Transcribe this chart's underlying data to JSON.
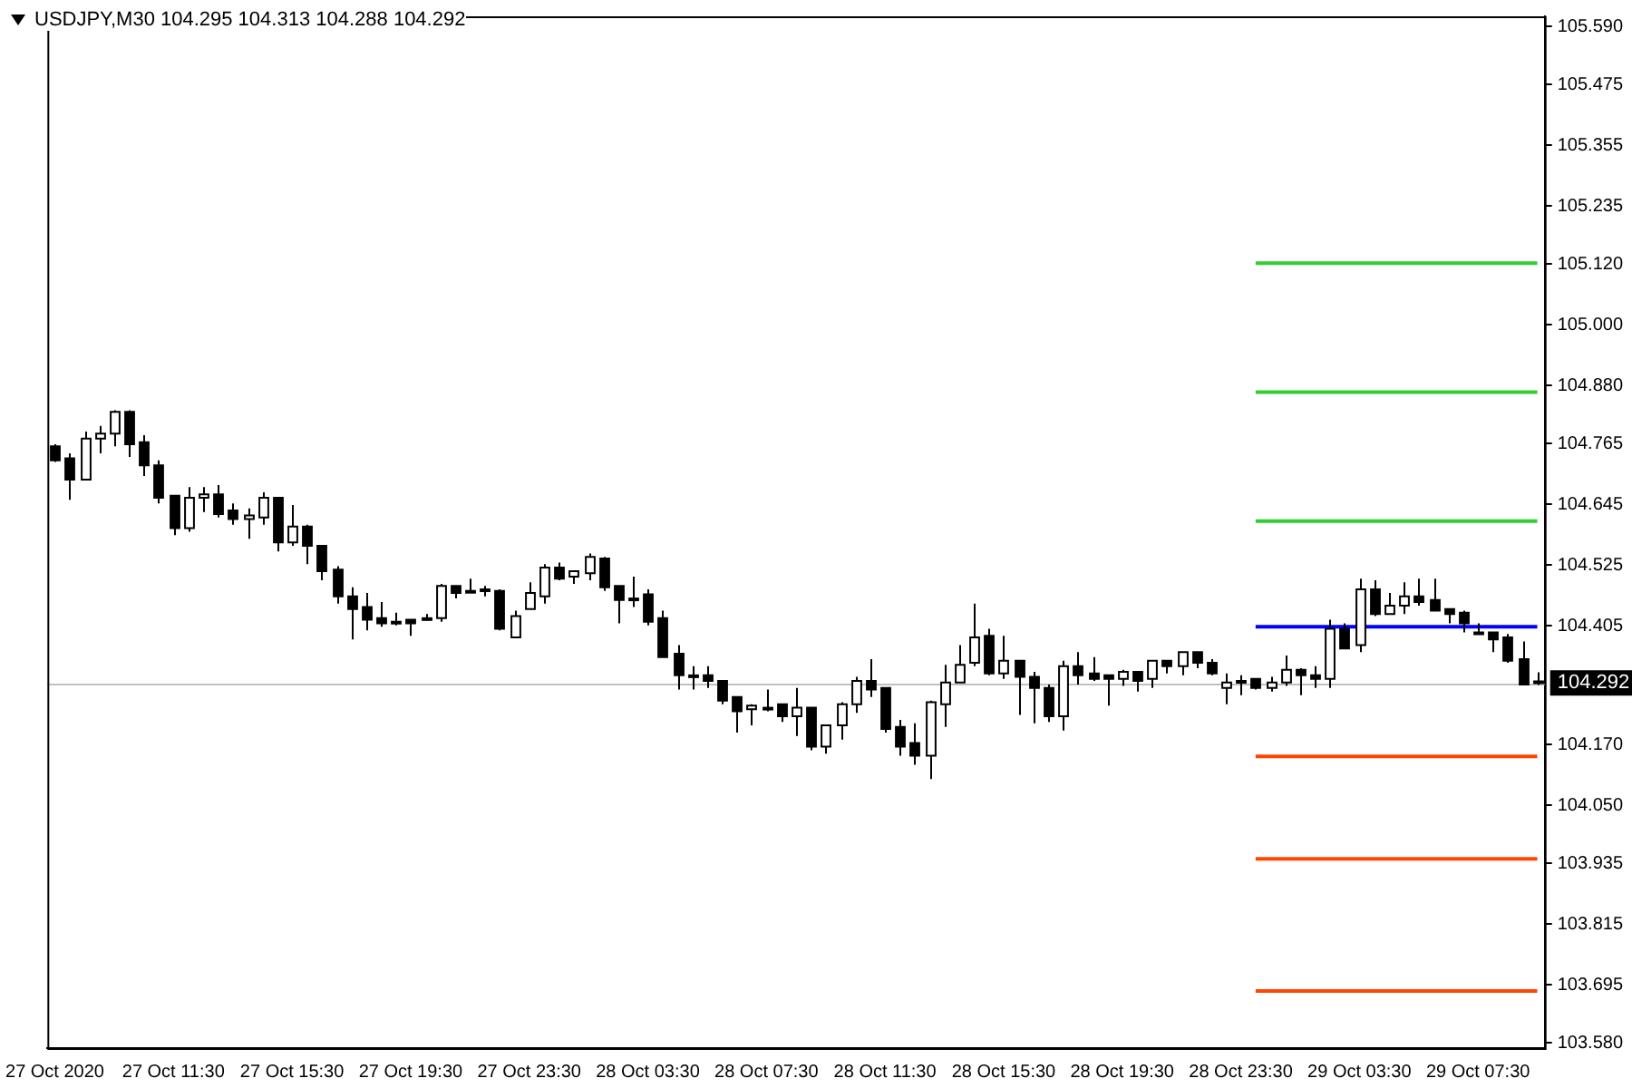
{
  "chart_data": {
    "type": "candlestick",
    "title": "USDJPY,M30  104.295 104.313 104.288 104.292",
    "categories": [
      "27 Oct 2020",
      null,
      null,
      null,
      null,
      null,
      null,
      null,
      "27 Oct 11:30",
      null,
      null,
      null,
      null,
      null,
      null,
      null,
      "27 Oct 15:30",
      null,
      null,
      null,
      null,
      null,
      null,
      null,
      "27 Oct 19:30",
      null,
      null,
      null,
      null,
      null,
      null,
      null,
      "27 Oct 23:30",
      null,
      null,
      null,
      null,
      null,
      null,
      null,
      "28 Oct 03:30",
      null,
      null,
      null,
      null,
      null,
      null,
      null,
      "28 Oct 07:30",
      null,
      null,
      null,
      null,
      null,
      null,
      null,
      "28 Oct 11:30",
      null,
      null,
      null,
      null,
      null,
      null,
      null,
      "28 Oct 15:30",
      null,
      null,
      null,
      null,
      null,
      null,
      null,
      "28 Oct 19:30",
      null,
      null,
      null,
      null,
      null,
      null,
      null,
      "28 Oct 23:30",
      null,
      null,
      null,
      null,
      null,
      null,
      null,
      "29 Oct 03:30",
      null,
      null,
      null,
      null,
      null,
      null,
      null,
      "29 Oct 07:30",
      null,
      null,
      null,
      null
    ],
    "ohlc": [
      [
        104.76,
        104.764,
        104.729,
        104.732
      ],
      [
        104.736,
        104.746,
        104.654,
        104.694
      ],
      [
        104.694,
        104.789,
        104.694,
        104.775
      ],
      [
        104.775,
        104.8,
        104.746,
        104.785
      ],
      [
        104.785,
        104.831,
        104.76,
        104.828
      ],
      [
        104.828,
        104.831,
        104.739,
        104.764
      ],
      [
        104.768,
        104.782,
        104.701,
        104.722
      ],
      [
        104.722,
        104.732,
        104.647,
        104.658
      ],
      [
        104.662,
        104.662,
        104.584,
        104.598
      ],
      [
        104.598,
        104.679,
        104.591,
        104.658
      ],
      [
        104.658,
        104.679,
        104.63,
        104.665
      ],
      [
        104.665,
        104.683,
        104.619,
        104.626
      ],
      [
        104.633,
        104.647,
        104.605,
        104.616
      ],
      [
        104.616,
        104.637,
        104.577,
        104.623
      ],
      [
        104.619,
        104.669,
        104.605,
        104.658
      ],
      [
        104.658,
        104.658,
        104.552,
        104.57
      ],
      [
        104.57,
        104.644,
        104.563,
        104.601
      ],
      [
        104.601,
        104.605,
        104.527,
        104.563
      ],
      [
        104.563,
        104.563,
        104.495,
        104.513
      ],
      [
        104.516,
        104.523,
        104.449,
        104.463
      ],
      [
        104.463,
        104.481,
        104.378,
        104.438
      ],
      [
        104.442,
        104.47,
        104.396,
        104.417
      ],
      [
        104.42,
        104.452,
        104.403,
        104.41
      ],
      [
        104.413,
        104.431,
        104.406,
        104.413
      ],
      [
        104.417,
        104.417,
        104.385,
        104.41
      ],
      [
        104.42,
        104.428,
        104.417,
        104.417
      ],
      [
        104.42,
        104.488,
        104.413,
        104.484
      ],
      [
        104.484,
        104.484,
        104.459,
        104.47
      ],
      [
        104.474,
        104.498,
        104.47,
        104.474
      ],
      [
        104.477,
        104.484,
        104.463,
        104.474
      ],
      [
        104.474,
        104.477,
        104.396,
        104.399
      ],
      [
        104.382,
        104.435,
        104.382,
        104.424
      ],
      [
        104.438,
        104.491,
        104.438,
        104.47
      ],
      [
        104.463,
        104.527,
        104.449,
        104.52
      ],
      [
        104.52,
        104.53,
        104.495,
        104.498
      ],
      [
        104.502,
        104.513,
        104.488,
        104.513
      ],
      [
        104.509,
        104.548,
        104.495,
        104.541
      ],
      [
        104.538,
        104.541,
        104.474,
        104.481
      ],
      [
        104.484,
        104.484,
        104.41,
        104.456
      ],
      [
        104.459,
        104.502,
        104.442,
        104.459
      ],
      [
        104.467,
        104.477,
        104.406,
        104.413
      ],
      [
        104.42,
        104.435,
        104.343,
        104.343
      ],
      [
        104.35,
        104.367,
        104.279,
        104.307
      ],
      [
        104.307,
        104.325,
        104.279,
        104.307
      ],
      [
        104.307,
        104.325,
        104.282,
        104.296
      ],
      [
        104.296,
        104.296,
        104.25,
        104.257
      ],
      [
        104.264,
        104.264,
        104.194,
        104.236
      ],
      [
        104.24,
        104.25,
        104.208,
        104.247
      ],
      [
        104.243,
        104.279,
        104.236,
        104.243
      ],
      [
        104.25,
        104.25,
        104.215,
        104.226
      ],
      [
        104.226,
        104.282,
        104.187,
        104.243
      ],
      [
        104.243,
        104.243,
        104.159,
        104.166
      ],
      [
        104.166,
        104.208,
        104.152,
        104.208
      ],
      [
        104.208,
        104.254,
        104.18,
        104.25
      ],
      [
        104.25,
        104.304,
        104.233,
        104.296
      ],
      [
        104.296,
        104.339,
        104.264,
        104.279
      ],
      [
        104.282,
        104.282,
        104.194,
        104.201
      ],
      [
        104.205,
        104.219,
        104.148,
        104.166
      ],
      [
        104.173,
        104.212,
        104.13,
        104.148
      ],
      [
        104.148,
        104.257,
        104.102,
        104.254
      ],
      [
        104.25,
        104.328,
        104.205,
        104.293
      ],
      [
        104.293,
        104.367,
        104.293,
        104.328
      ],
      [
        104.332,
        104.449,
        104.325,
        104.382
      ],
      [
        104.385,
        104.399,
        104.307,
        104.311
      ],
      [
        104.311,
        104.385,
        104.3,
        104.336
      ],
      [
        104.336,
        104.336,
        104.229,
        104.304
      ],
      [
        104.304,
        104.314,
        104.212,
        104.282
      ],
      [
        104.282,
        104.289,
        104.215,
        104.226
      ],
      [
        104.226,
        104.336,
        104.198,
        104.325
      ],
      [
        104.325,
        104.353,
        104.289,
        104.307
      ],
      [
        104.311,
        104.343,
        104.296,
        104.3
      ],
      [
        104.307,
        104.307,
        104.247,
        104.3
      ],
      [
        104.3,
        104.318,
        104.286,
        104.314
      ],
      [
        104.314,
        104.314,
        104.275,
        104.296
      ],
      [
        104.3,
        104.336,
        104.282,
        104.336
      ],
      [
        104.336,
        104.336,
        104.311,
        104.325
      ],
      [
        104.325,
        104.353,
        104.307,
        104.353
      ],
      [
        104.353,
        104.353,
        104.321,
        104.332
      ],
      [
        104.332,
        104.339,
        104.307,
        104.311
      ],
      [
        104.282,
        104.311,
        104.25,
        104.293
      ],
      [
        104.296,
        104.307,
        104.268,
        104.293
      ],
      [
        104.3,
        104.3,
        104.279,
        104.282
      ],
      [
        104.282,
        104.304,
        104.275,
        104.293
      ],
      [
        104.293,
        104.346,
        104.286,
        104.318
      ],
      [
        104.318,
        104.321,
        104.268,
        104.307
      ],
      [
        104.307,
        104.325,
        104.282,
        104.3
      ],
      [
        104.3,
        104.417,
        104.282,
        104.399
      ],
      [
        104.399,
        104.41,
        104.36,
        104.36
      ],
      [
        104.367,
        104.498,
        104.353,
        104.477
      ],
      [
        104.477,
        104.495,
        104.424,
        104.428
      ],
      [
        104.428,
        104.47,
        104.428,
        104.445
      ],
      [
        104.445,
        104.491,
        104.428,
        104.463
      ],
      [
        104.463,
        104.498,
        104.445,
        104.452
      ],
      [
        104.456,
        104.498,
        104.435,
        104.435
      ],
      [
        104.438,
        104.438,
        104.41,
        104.428
      ],
      [
        104.431,
        104.435,
        104.392,
        104.41
      ],
      [
        104.392,
        104.41,
        104.389,
        104.392
      ],
      [
        104.392,
        104.392,
        104.353,
        104.378
      ],
      [
        104.382,
        104.389,
        104.332,
        104.336
      ],
      [
        104.339,
        104.374,
        104.289,
        104.289
      ],
      [
        104.295,
        104.313,
        104.288,
        104.292
      ]
    ],
    "series": [
      {
        "type": "line",
        "color": "#32cd32",
        "values": [
          null,
          null,
          null,
          null,
          null,
          null,
          null,
          null,
          null,
          null,
          null,
          null,
          null,
          null,
          null,
          null,
          null,
          null,
          null,
          null,
          null,
          null,
          null,
          null,
          null,
          null,
          null,
          null,
          null,
          null,
          null,
          null,
          null,
          null,
          null,
          null,
          null,
          null,
          null,
          null,
          null,
          null,
          null,
          null,
          null,
          null,
          null,
          null,
          null,
          null,
          null,
          null,
          null,
          null,
          null,
          null,
          null,
          null,
          null,
          null,
          null,
          null,
          null,
          null,
          null,
          null,
          null,
          null,
          null,
          null,
          null,
          null,
          null,
          null,
          null,
          null,
          null,
          null,
          null,
          null,
          null,
          105.122,
          105.122,
          105.122,
          105.122,
          105.122,
          105.122,
          105.122,
          105.122,
          105.122,
          105.122,
          105.122,
          105.122,
          105.122,
          105.122,
          105.122,
          105.122,
          105.122,
          105.122,
          105.122,
          105.122
        ]
      },
      {
        "type": "line",
        "color": "#32cd32",
        "values": [
          null,
          null,
          null,
          null,
          null,
          null,
          null,
          null,
          null,
          null,
          null,
          null,
          null,
          null,
          null,
          null,
          null,
          null,
          null,
          null,
          null,
          null,
          null,
          null,
          null,
          null,
          null,
          null,
          null,
          null,
          null,
          null,
          null,
          null,
          null,
          null,
          null,
          null,
          null,
          null,
          null,
          null,
          null,
          null,
          null,
          null,
          null,
          null,
          null,
          null,
          null,
          null,
          null,
          null,
          null,
          null,
          null,
          null,
          null,
          null,
          null,
          null,
          null,
          null,
          null,
          null,
          null,
          null,
          null,
          null,
          null,
          null,
          null,
          null,
          null,
          null,
          null,
          null,
          null,
          null,
          null,
          104.867,
          104.867,
          104.867,
          104.867,
          104.867,
          104.867,
          104.867,
          104.867,
          104.867,
          104.867,
          104.867,
          104.867,
          104.867,
          104.867,
          104.867,
          104.867,
          104.867,
          104.867,
          104.867,
          104.867
        ]
      },
      {
        "type": "line",
        "color": "#32cd32",
        "values": [
          null,
          null,
          null,
          null,
          null,
          null,
          null,
          null,
          null,
          null,
          null,
          null,
          null,
          null,
          null,
          null,
          null,
          null,
          null,
          null,
          null,
          null,
          null,
          null,
          null,
          null,
          null,
          null,
          null,
          null,
          null,
          null,
          null,
          null,
          null,
          null,
          null,
          null,
          null,
          null,
          null,
          null,
          null,
          null,
          null,
          null,
          null,
          null,
          null,
          null,
          null,
          null,
          null,
          null,
          null,
          null,
          null,
          null,
          null,
          null,
          null,
          null,
          null,
          null,
          null,
          null,
          null,
          null,
          null,
          null,
          null,
          null,
          null,
          null,
          null,
          null,
          null,
          null,
          null,
          null,
          null,
          104.612,
          104.612,
          104.612,
          104.612,
          104.612,
          104.612,
          104.612,
          104.612,
          104.612,
          104.612,
          104.612,
          104.612,
          104.612,
          104.612,
          104.612,
          104.612,
          104.612,
          104.612,
          104.612,
          104.612
        ]
      },
      {
        "type": "line",
        "color": "#0000ff",
        "values": [
          null,
          null,
          null,
          null,
          null,
          null,
          null,
          null,
          null,
          null,
          null,
          null,
          null,
          null,
          null,
          null,
          null,
          null,
          null,
          null,
          null,
          null,
          null,
          null,
          null,
          null,
          null,
          null,
          null,
          null,
          null,
          null,
          null,
          null,
          null,
          null,
          null,
          null,
          null,
          null,
          null,
          null,
          null,
          null,
          null,
          null,
          null,
          null,
          null,
          null,
          null,
          null,
          null,
          null,
          null,
          null,
          null,
          null,
          null,
          null,
          null,
          null,
          null,
          null,
          null,
          null,
          null,
          null,
          null,
          null,
          null,
          null,
          null,
          null,
          null,
          null,
          null,
          null,
          null,
          null,
          null,
          104.403,
          104.403,
          104.403,
          104.403,
          104.403,
          104.403,
          104.403,
          104.403,
          104.403,
          104.403,
          104.403,
          104.403,
          104.403,
          104.403,
          104.403,
          104.403,
          104.403,
          104.403,
          104.403,
          104.403
        ]
      },
      {
        "type": "line",
        "color": "#ff4500",
        "values": [
          null,
          null,
          null,
          null,
          null,
          null,
          null,
          null,
          null,
          null,
          null,
          null,
          null,
          null,
          null,
          null,
          null,
          null,
          null,
          null,
          null,
          null,
          null,
          null,
          null,
          null,
          null,
          null,
          null,
          null,
          null,
          null,
          null,
          null,
          null,
          null,
          null,
          null,
          null,
          null,
          null,
          null,
          null,
          null,
          null,
          null,
          null,
          null,
          null,
          null,
          null,
          null,
          null,
          null,
          null,
          null,
          null,
          null,
          null,
          null,
          null,
          null,
          null,
          null,
          null,
          null,
          null,
          null,
          null,
          null,
          null,
          null,
          null,
          null,
          null,
          null,
          null,
          null,
          null,
          null,
          null,
          104.147,
          104.147,
          104.147,
          104.147,
          104.147,
          104.147,
          104.147,
          104.147,
          104.147,
          104.147,
          104.147,
          104.147,
          104.147,
          104.147,
          104.147,
          104.147,
          104.147,
          104.147,
          104.147,
          104.147
        ]
      },
      {
        "type": "line",
        "color": "#ff4500",
        "values": [
          null,
          null,
          null,
          null,
          null,
          null,
          null,
          null,
          null,
          null,
          null,
          null,
          null,
          null,
          null,
          null,
          null,
          null,
          null,
          null,
          null,
          null,
          null,
          null,
          null,
          null,
          null,
          null,
          null,
          null,
          null,
          null,
          null,
          null,
          null,
          null,
          null,
          null,
          null,
          null,
          null,
          null,
          null,
          null,
          null,
          null,
          null,
          null,
          null,
          null,
          null,
          null,
          null,
          null,
          null,
          null,
          null,
          null,
          null,
          null,
          null,
          null,
          null,
          null,
          null,
          null,
          null,
          null,
          null,
          null,
          null,
          null,
          null,
          null,
          null,
          null,
          null,
          null,
          null,
          null,
          null,
          103.944,
          103.944,
          103.944,
          103.944,
          103.944,
          103.944,
          103.944,
          103.944,
          103.944,
          103.944,
          103.944,
          103.944,
          103.944,
          103.944,
          103.944,
          103.944,
          103.944,
          103.944,
          103.944,
          103.944
        ]
      },
      {
        "type": "line",
        "color": "#ff4500",
        "values": [
          null,
          null,
          null,
          null,
          null,
          null,
          null,
          null,
          null,
          null,
          null,
          null,
          null,
          null,
          null,
          null,
          null,
          null,
          null,
          null,
          null,
          null,
          null,
          null,
          null,
          null,
          null,
          null,
          null,
          null,
          null,
          null,
          null,
          null,
          null,
          null,
          null,
          null,
          null,
          null,
          null,
          null,
          null,
          null,
          null,
          null,
          null,
          null,
          null,
          null,
          null,
          null,
          null,
          null,
          null,
          null,
          null,
          null,
          null,
          null,
          null,
          null,
          null,
          null,
          null,
          null,
          null,
          null,
          null,
          null,
          null,
          null,
          null,
          null,
          null,
          null,
          null,
          null,
          null,
          null,
          null,
          103.683,
          103.683,
          103.683,
          103.683,
          103.683,
          103.683,
          103.683,
          103.683,
          103.683,
          103.683,
          103.683,
          103.683,
          103.683,
          103.683,
          103.683,
          103.683,
          103.683,
          103.683,
          103.683,
          103.683
        ]
      }
    ],
    "ylim": [
      103.57,
      105.61
    ],
    "yticks": [
      {
        "value": 105.59,
        "label": "105.590"
      },
      {
        "value": 105.475,
        "label": "105.475"
      },
      {
        "value": 105.355,
        "label": "105.355"
      },
      {
        "value": 105.235,
        "label": "105.235"
      },
      {
        "value": 105.12,
        "label": "105.120"
      },
      {
        "value": 105.0,
        "label": "105.000"
      },
      {
        "value": 104.88,
        "label": "104.880"
      },
      {
        "value": 104.765,
        "label": "104.765"
      },
      {
        "value": 104.645,
        "label": "104.645"
      },
      {
        "value": 104.525,
        "label": "104.525"
      },
      {
        "value": 104.405,
        "label": "104.405"
      },
      {
        "value": 104.17,
        "label": "104.170"
      },
      {
        "value": 104.05,
        "label": "104.050"
      },
      {
        "value": 103.935,
        "label": "103.935"
      },
      {
        "value": 103.815,
        "label": "103.815"
      },
      {
        "value": 103.695,
        "label": "103.695"
      },
      {
        "value": 103.58,
        "label": "103.580"
      }
    ],
    "ref_lines": [
      {
        "axis": "y",
        "value": 104.292,
        "label": "104.292",
        "color": "#c0c0c0"
      }
    ]
  }
}
